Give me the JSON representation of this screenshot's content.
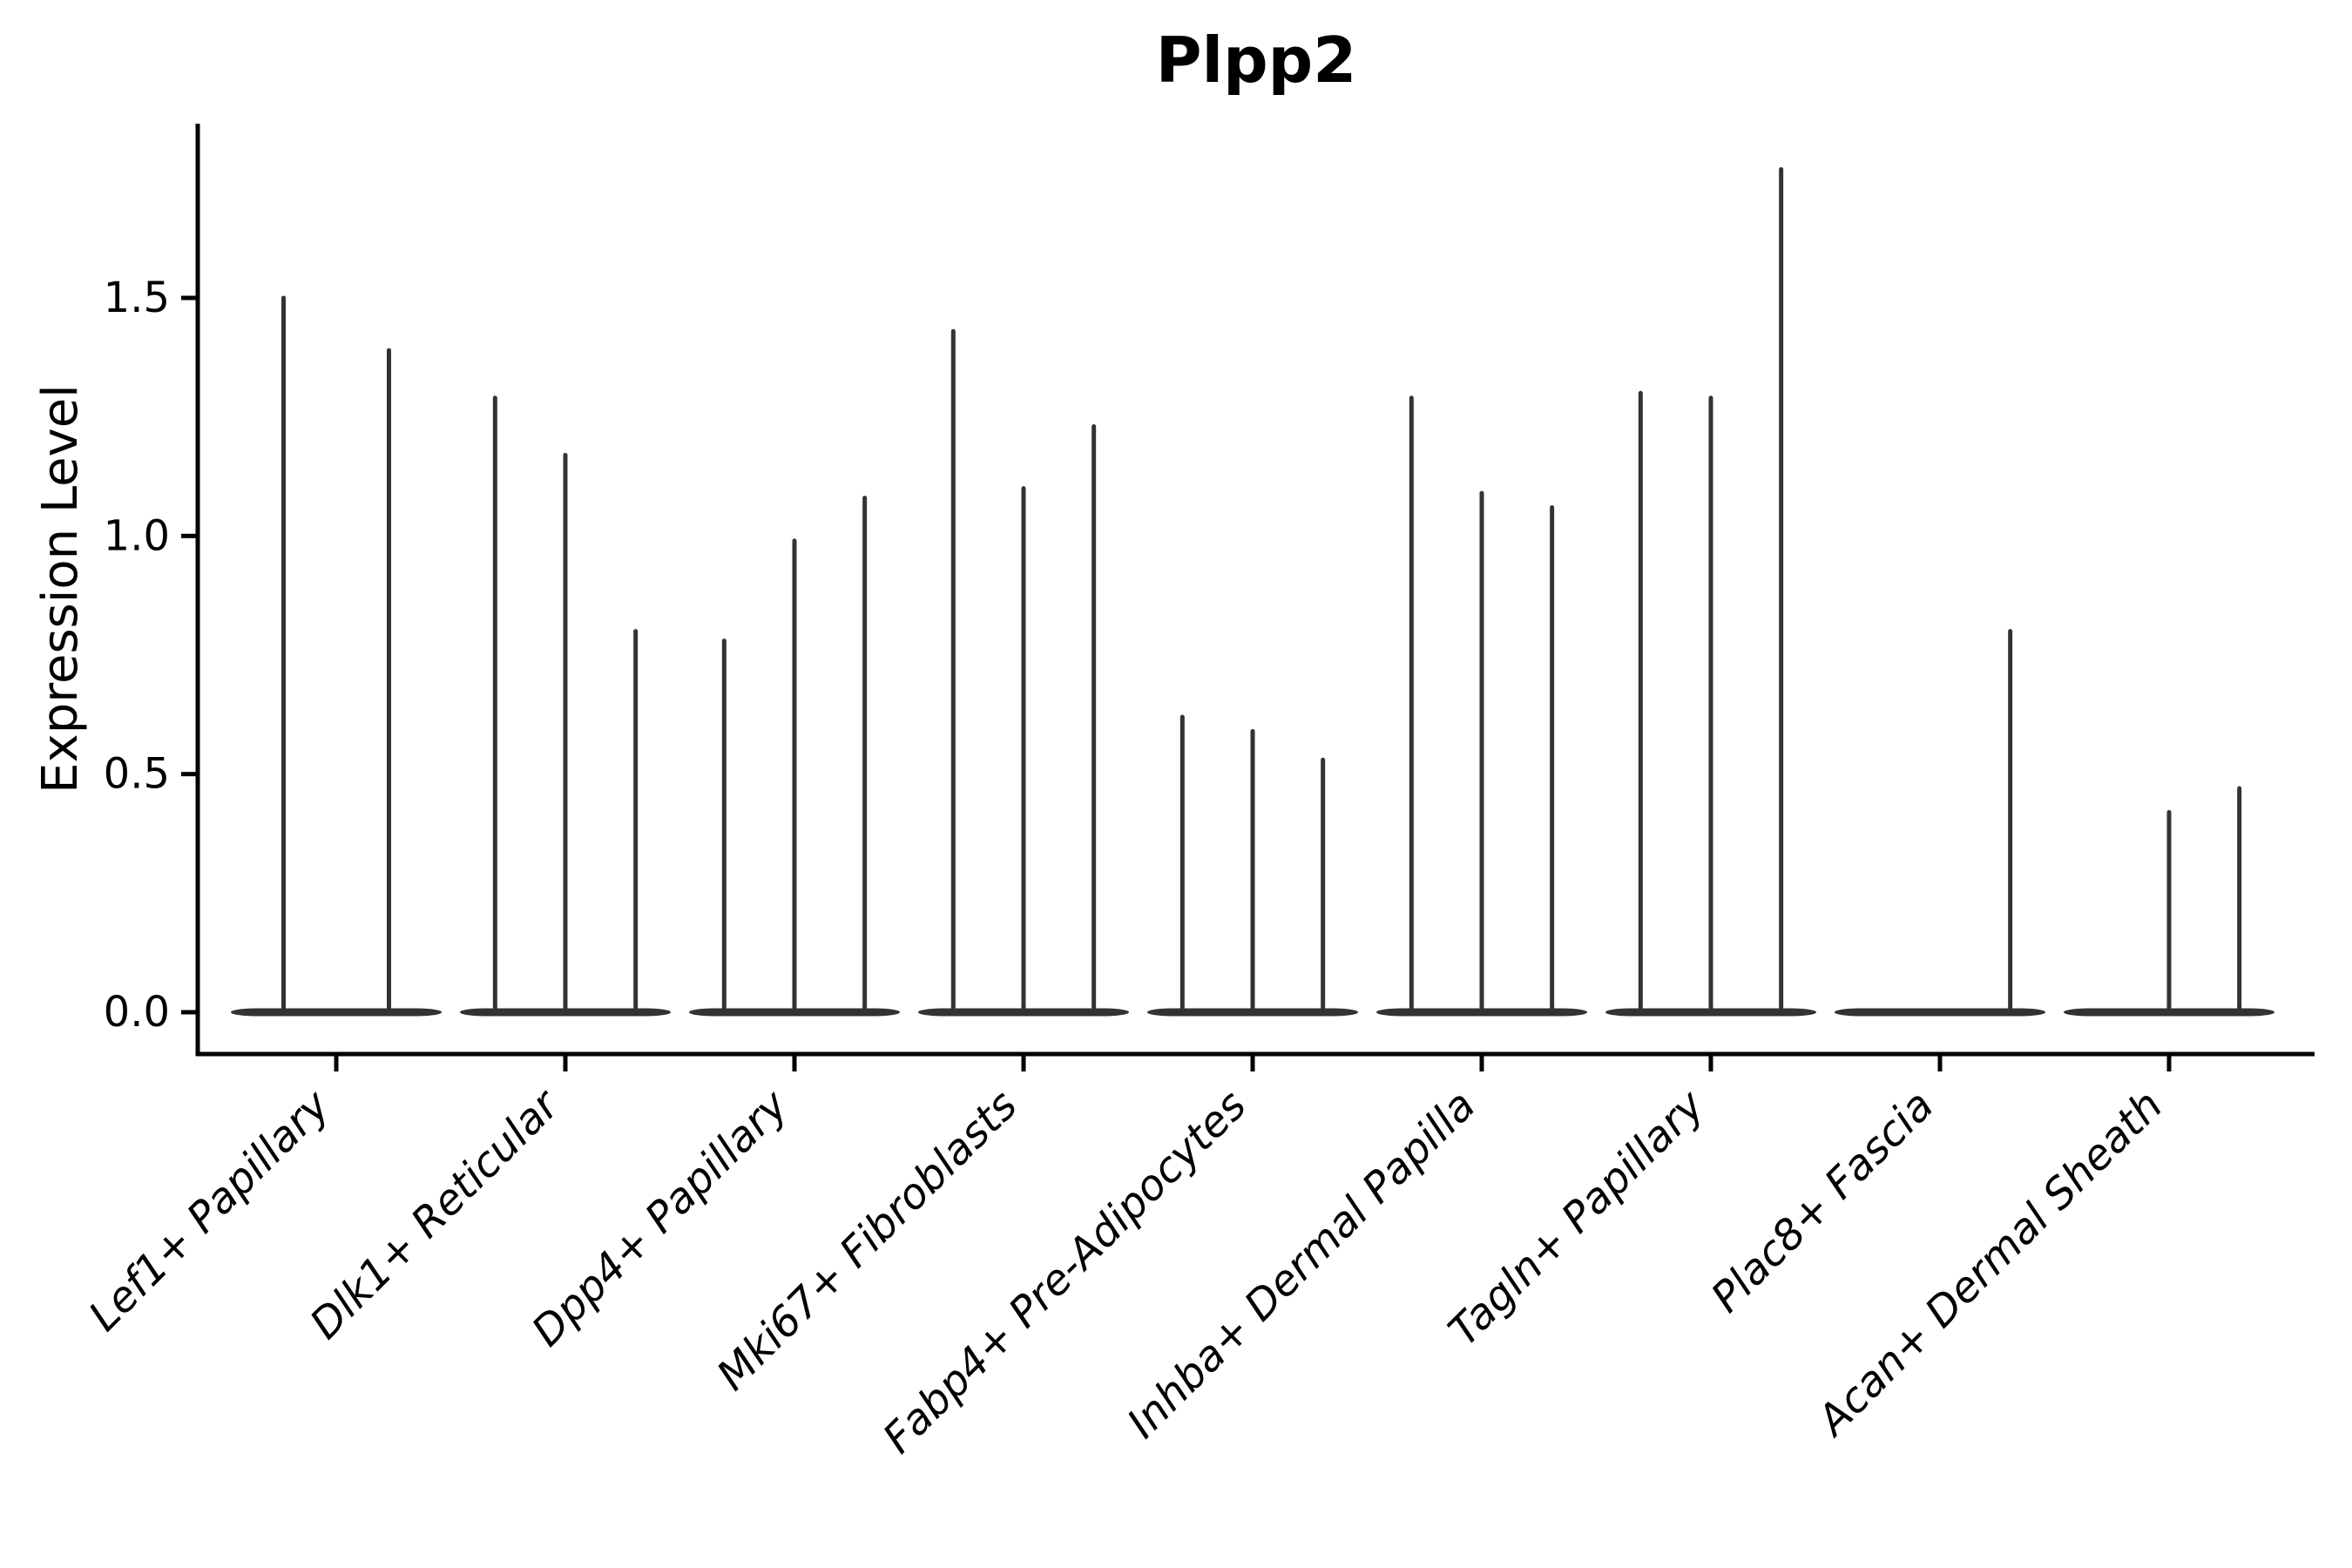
{
  "chart_data": {
    "type": "violin",
    "title": "Plpp2",
    "xlabel": "",
    "ylabel": "Expression Level",
    "ytick_labels": [
      "0.0",
      "0.5",
      "1.0",
      "1.5"
    ],
    "ytick_values": [
      0.0,
      0.5,
      1.0,
      1.5
    ],
    "ylim": [
      -0.09,
      1.87
    ],
    "grid": false,
    "legend_position": "none",
    "x_label_rotation_deg": 45,
    "x_label_style": "italic",
    "violin_shape_note": "each violin has nearly all density at expression 0 (flat wide base) with a thin vertical spike up to its maximum expression value",
    "colors": {
      "violin": "#333333",
      "spine": "#000000",
      "text": "#000000",
      "background": "#ffffff"
    },
    "categories": [
      "Lef1+ Papillary",
      "Dlk1+ Reticular",
      "Dpp4+ Papillary",
      "Mki67+ Fibroblasts",
      "Fabp4+ Pre-Adipocytes",
      "Inhba+ Dermal Papilla",
      "Tagln+ Papillary",
      "Plac8+ Fascia",
      "Acan+ Dermal Sheath"
    ],
    "groups": [
      {
        "category": "Lef1+ Papillary",
        "violin_max_expression": [
          1.5,
          1.39
        ]
      },
      {
        "category": "Dlk1+ Reticular",
        "violin_max_expression": [
          1.29,
          1.17,
          0.8
        ]
      },
      {
        "category": "Dpp4+ Papillary",
        "violin_max_expression": [
          0.78,
          0.99,
          1.08
        ]
      },
      {
        "category": "Mki67+ Fibroblasts",
        "violin_max_expression": [
          1.43,
          1.1,
          1.23
        ]
      },
      {
        "category": "Fabp4+ Pre-Adipocytes",
        "violin_max_expression": [
          0.62,
          0.59,
          0.53
        ]
      },
      {
        "category": "Inhba+ Dermal Papilla",
        "violin_max_expression": [
          1.29,
          1.09,
          1.06
        ]
      },
      {
        "category": "Tagln+ Papillary",
        "violin_max_expression": [
          1.3,
          1.29,
          1.77
        ]
      },
      {
        "category": "Plac8+ Fascia",
        "violin_max_expression": [
          0,
          0,
          0.8
        ]
      },
      {
        "category": "Acan+ Dermal Sheath",
        "violin_max_expression": [
          0,
          0.42,
          0.47
        ]
      }
    ]
  }
}
